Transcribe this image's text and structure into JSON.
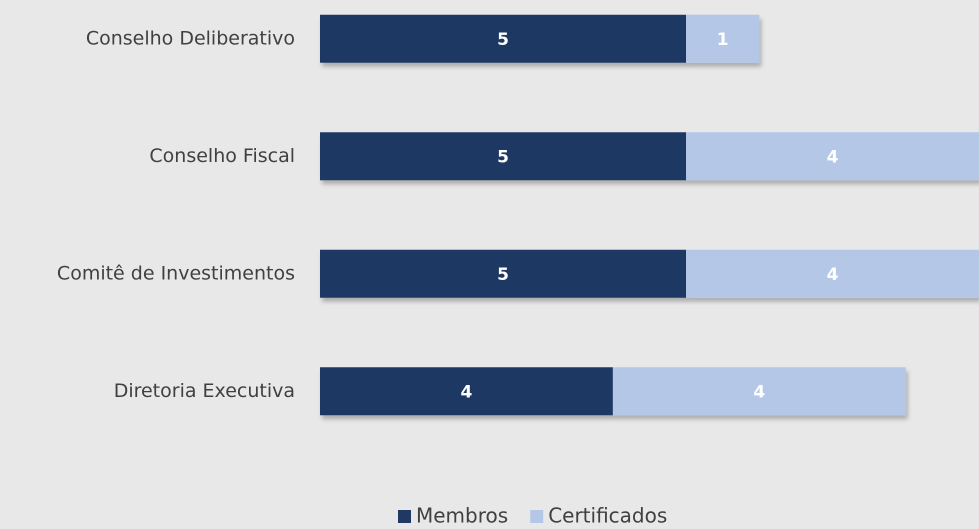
{
  "chart_data": {
    "type": "stacked_bar_horizontal",
    "categories": [
      "Conselho Deliberativo",
      "Conselho Fiscal",
      "Comitê de Investimentos",
      "Diretoria Executiva"
    ],
    "series": [
      {
        "name": "Membros",
        "color": "#1f3864",
        "values": [
          5,
          5,
          5,
          4
        ]
      },
      {
        "name": "Certificados",
        "color": "#b4c7e7",
        "values": [
          1,
          4,
          4,
          4
        ]
      }
    ],
    "xlim": [
      0,
      9
    ],
    "legend": "bottom"
  }
}
